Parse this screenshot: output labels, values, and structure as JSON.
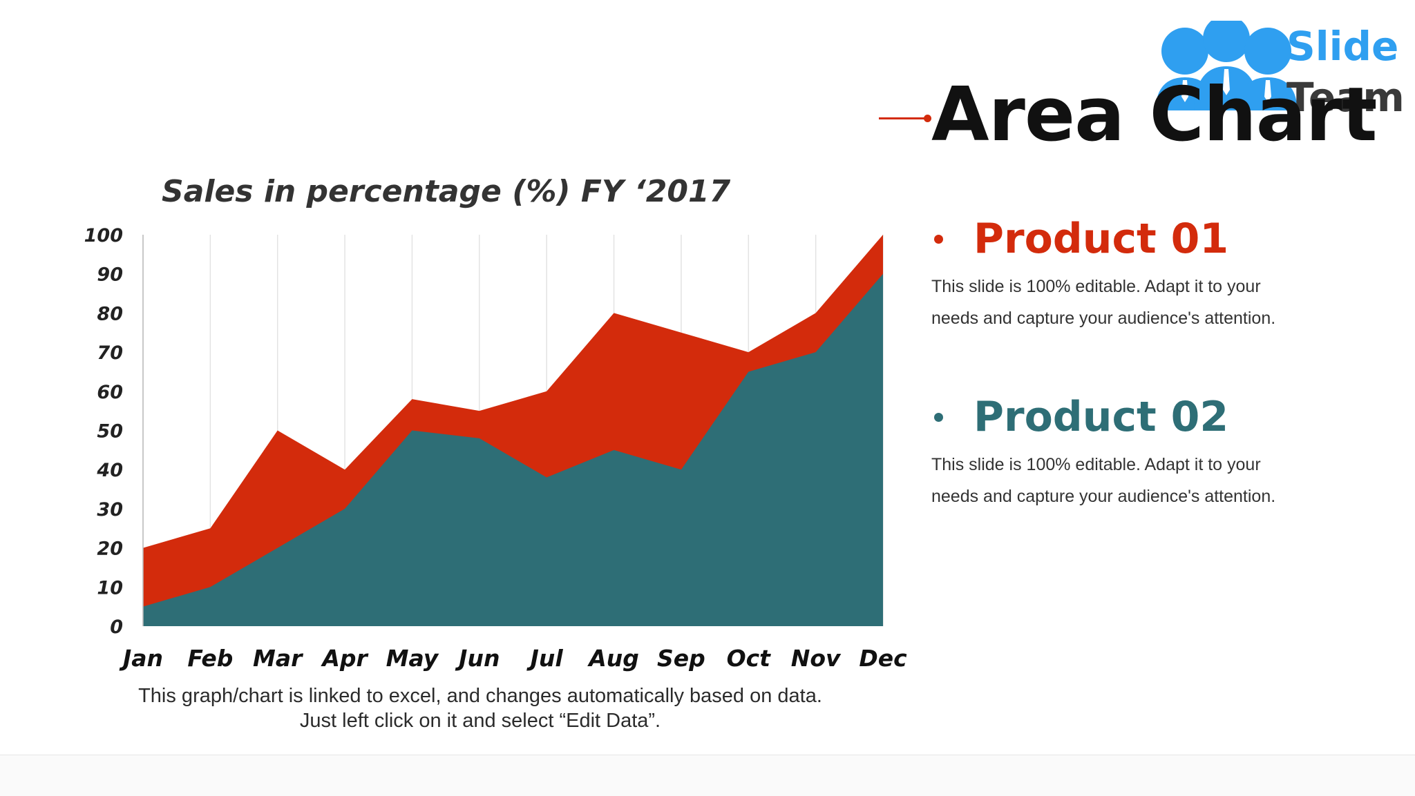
{
  "logo": {
    "word1": "Slide",
    "word2": "Team"
  },
  "page_title": "Area Chart",
  "colors": {
    "product_01": "#d32b0c",
    "product_02": "#2e6e76",
    "title_accent": "#d32b0c",
    "logo_blue": "#2f9ff0"
  },
  "chart_data": {
    "type": "area",
    "title": "Sales in percentage (%) FY ‘2017",
    "xlabel": "",
    "ylabel": "",
    "categories": [
      "Jan",
      "Feb",
      "Mar",
      "Apr",
      "May",
      "Jun",
      "Jul",
      "Aug",
      "Sep",
      "Oct",
      "Nov",
      "Dec"
    ],
    "y_ticks": [
      "0",
      "10",
      "20",
      "30",
      "40",
      "50",
      "60",
      "70",
      "80",
      "90",
      "100"
    ],
    "ylim": [
      0,
      100
    ],
    "grid": "vertical",
    "legend": "none",
    "series": [
      {
        "values": [
          20,
          25,
          50,
          40,
          58,
          55,
          60,
          80,
          75,
          70,
          80,
          100
        ],
        "color": "#d32b0c"
      },
      {
        "values": [
          5,
          10,
          20,
          30,
          50,
          48,
          38,
          45,
          40,
          65,
          70,
          90
        ],
        "color": "#2e6e76"
      }
    ]
  },
  "chart_note": "This graph/chart is linked to excel, and changes automatically based on data. Just left click on it and select “Edit Data”.",
  "products": [
    {
      "name": "Product 01",
      "description": "This slide is 100% editable. Adapt it to your needs and capture your audience's attention."
    },
    {
      "name": "Product 02",
      "description": "This slide is 100% editable. Adapt it to your needs and capture your audience's attention."
    }
  ]
}
